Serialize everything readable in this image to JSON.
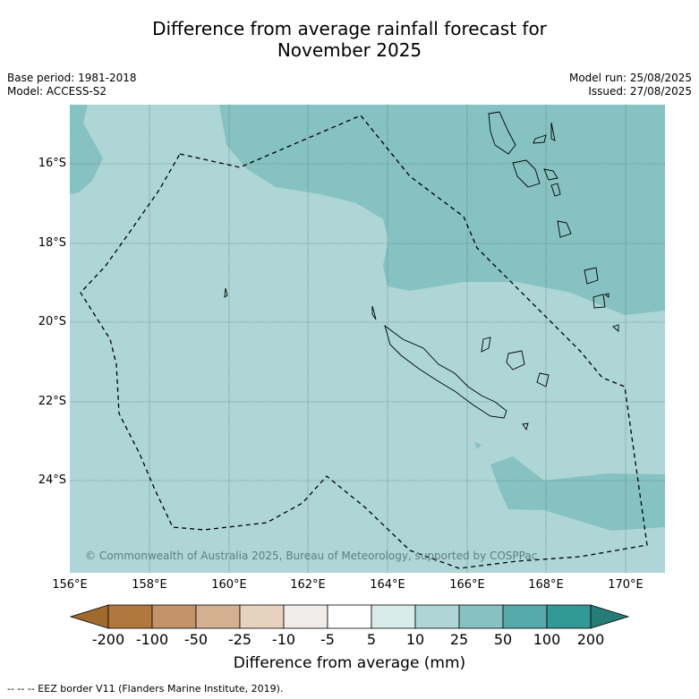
{
  "title_line1": "Difference from average rainfall forecast for",
  "title_line2": "November 2025",
  "meta": {
    "base_period": "Base period: 1981-2018",
    "model": "Model: ACCESS-S2",
    "model_run": "Model run: 25/08/2025",
    "issued": "Issued: 27/08/2025"
  },
  "map": {
    "lat_labels": [
      "16°S",
      "18°S",
      "20°S",
      "22°S",
      "24°S"
    ],
    "lon_labels": [
      "156°E",
      "158°E",
      "160°E",
      "162°E",
      "164°E",
      "166°E",
      "168°E",
      "170°E"
    ],
    "copyright": "© Commonwealth of Australia 2025, Bureau of Meteorology, supported by COSPPac",
    "colors": {
      "light_teal": "#aed6d6",
      "mid_teal": "#85c2c1",
      "grid": "#4a6a6a"
    }
  },
  "colorbar": {
    "labels": [
      "-200",
      "-100",
      "-50",
      "-25",
      "-10",
      "-5",
      "5",
      "10",
      "25",
      "50",
      "100",
      "200"
    ],
    "colors": [
      "#a06a2e",
      "#b0783c",
      "#c49468",
      "#d4b090",
      "#e6d2bf",
      "#f0ecea",
      "#ffffff",
      "#d8ecea",
      "#aed6d6",
      "#85c2c1",
      "#56aaaa",
      "#329a94",
      "#267c76"
    ],
    "title": "Difference from average (mm)"
  },
  "footnote": "--  --  -- EEZ border V11 (Flanders Marine Institute, 2019)."
}
